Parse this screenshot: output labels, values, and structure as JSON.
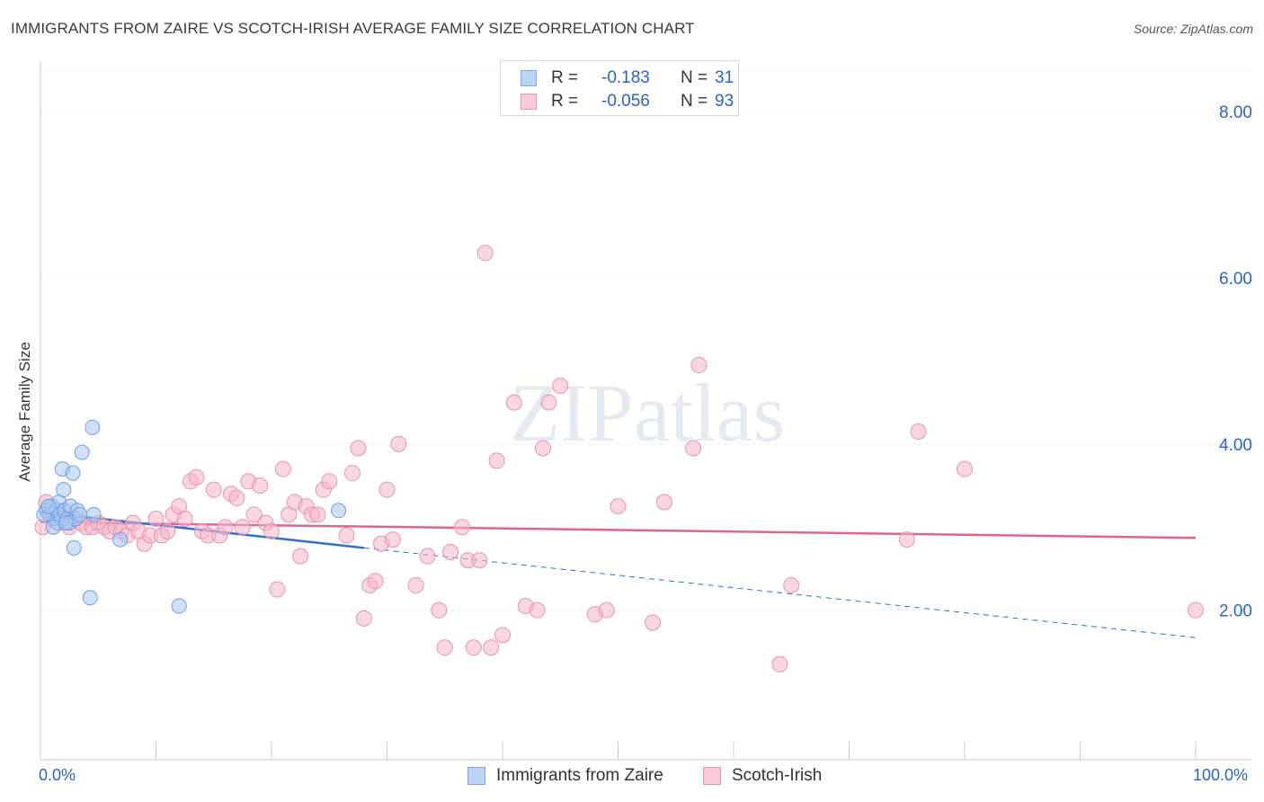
{
  "title": "IMMIGRANTS FROM ZAIRE VS SCOTCH-IRISH AVERAGE FAMILY SIZE CORRELATION CHART",
  "source": "Source: ZipAtlas.com",
  "watermark": "ZIPatlas",
  "colors": {
    "blue": "#2e6fd1",
    "blue_fill": "#a9c6f0",
    "pink": "#e0648f",
    "pink_fill": "#f4b6cb",
    "tick_text": "#2a63c4",
    "grid": "#e6e6e6"
  },
  "legend": {
    "rows": [
      {
        "r_label": "R =",
        "r_value": "-0.183",
        "n_label": "N =",
        "n_value": "31"
      },
      {
        "r_label": "R =",
        "r_value": "-0.056",
        "n_label": "N = ",
        "n_value": "93"
      }
    ]
  },
  "bottom_legend": {
    "series1": "Immigrants from Zaire",
    "series2": "Scotch-Irish"
  },
  "chart_data": {
    "type": "scatter",
    "xlabel": "",
    "ylabel": "Average Family Size",
    "xlim": [
      0,
      100
    ],
    "ylim": [
      0.2,
      8.5
    ],
    "x_tick_labels": [
      "0.0%",
      "100.0%"
    ],
    "y_ticks": [
      2,
      4,
      6,
      8
    ],
    "y_tick_labels": [
      "2.00",
      "4.00",
      "6.00",
      "8.00"
    ],
    "grid": true,
    "legend_placement": "top-center",
    "series": [
      {
        "name": "Immigrants from Zaire",
        "color": "#2e6fd1",
        "points": [
          [
            0.5,
            3.2
          ],
          [
            0.8,
            3.15
          ],
          [
            1.0,
            3.25
          ],
          [
            1.2,
            3.1
          ],
          [
            1.4,
            3.2
          ],
          [
            1.5,
            3.05
          ],
          [
            1.6,
            3.3
          ],
          [
            1.7,
            3.15
          ],
          [
            1.8,
            3.1
          ],
          [
            1.9,
            3.7
          ],
          [
            2.0,
            3.45
          ],
          [
            2.1,
            3.2
          ],
          [
            2.3,
            3.1
          ],
          [
            2.5,
            3.05
          ],
          [
            2.6,
            3.25
          ],
          [
            2.8,
            3.65
          ],
          [
            2.9,
            2.75
          ],
          [
            3.0,
            3.1
          ],
          [
            3.2,
            3.2
          ],
          [
            3.4,
            3.15
          ],
          [
            3.6,
            3.9
          ],
          [
            4.5,
            4.2
          ],
          [
            4.3,
            2.15
          ],
          [
            4.6,
            3.15
          ],
          [
            6.9,
            2.85
          ],
          [
            12.0,
            2.05
          ],
          [
            25.8,
            3.2
          ],
          [
            0.3,
            3.15
          ],
          [
            1.1,
            3.0
          ],
          [
            2.2,
            3.05
          ],
          [
            0.7,
            3.25
          ]
        ],
        "trend": {
          "x": [
            0,
            28
          ],
          "y": [
            3.18,
            2.75
          ]
        },
        "trend_extension": {
          "x": [
            28,
            100
          ],
          "y": [
            2.75,
            1.67
          ]
        }
      },
      {
        "name": "Scotch-Irish",
        "color": "#e0648f",
        "points": [
          [
            0.5,
            3.3
          ],
          [
            1.0,
            3.1
          ],
          [
            1.5,
            3.05
          ],
          [
            2.0,
            3.2
          ],
          [
            2.5,
            3.0
          ],
          [
            3.0,
            3.1
          ],
          [
            3.5,
            3.05
          ],
          [
            4.0,
            3.0
          ],
          [
            4.5,
            3.0
          ],
          [
            5.0,
            3.05
          ],
          [
            5.5,
            3.0
          ],
          [
            6.0,
            2.95
          ],
          [
            6.5,
            3.0
          ],
          [
            7.0,
            2.95
          ],
          [
            7.5,
            2.9
          ],
          [
            8.0,
            3.05
          ],
          [
            8.5,
            2.95
          ],
          [
            9.0,
            2.8
          ],
          [
            9.5,
            2.9
          ],
          [
            10.0,
            3.1
          ],
          [
            10.5,
            2.9
          ],
          [
            11.0,
            2.95
          ],
          [
            11.5,
            3.15
          ],
          [
            12.0,
            3.25
          ],
          [
            12.5,
            3.1
          ],
          [
            13.0,
            3.55
          ],
          [
            13.5,
            3.6
          ],
          [
            14.0,
            2.95
          ],
          [
            14.5,
            2.9
          ],
          [
            15.0,
            3.45
          ],
          [
            15.5,
            2.9
          ],
          [
            16.0,
            3.0
          ],
          [
            16.5,
            3.4
          ],
          [
            17.0,
            3.35
          ],
          [
            17.5,
            3.0
          ],
          [
            18.0,
            3.55
          ],
          [
            18.5,
            3.15
          ],
          [
            19.0,
            3.5
          ],
          [
            19.5,
            3.05
          ],
          [
            20.0,
            2.95
          ],
          [
            20.5,
            2.25
          ],
          [
            21.0,
            3.7
          ],
          [
            21.5,
            3.15
          ],
          [
            22.0,
            3.3
          ],
          [
            22.5,
            2.65
          ],
          [
            23.0,
            3.25
          ],
          [
            23.5,
            3.15
          ],
          [
            24.0,
            3.15
          ],
          [
            24.5,
            3.45
          ],
          [
            25.0,
            3.55
          ],
          [
            26.5,
            2.9
          ],
          [
            27.0,
            3.65
          ],
          [
            27.5,
            3.95
          ],
          [
            28.0,
            1.9
          ],
          [
            28.5,
            2.3
          ],
          [
            29.0,
            2.35
          ],
          [
            29.5,
            2.8
          ],
          [
            30.0,
            3.45
          ],
          [
            30.5,
            2.85
          ],
          [
            31.0,
            4.0
          ],
          [
            32.5,
            2.3
          ],
          [
            33.5,
            2.65
          ],
          [
            34.5,
            2.0
          ],
          [
            35.0,
            1.55
          ],
          [
            35.5,
            2.7
          ],
          [
            36.5,
            3.0
          ],
          [
            37.0,
            2.6
          ],
          [
            37.5,
            1.55
          ],
          [
            38.0,
            2.6
          ],
          [
            38.5,
            6.3
          ],
          [
            39.0,
            1.55
          ],
          [
            39.5,
            3.8
          ],
          [
            40.0,
            1.7
          ],
          [
            41.0,
            4.5
          ],
          [
            42.0,
            2.05
          ],
          [
            43.0,
            2.0
          ],
          [
            43.5,
            3.95
          ],
          [
            44.0,
            4.5
          ],
          [
            45.0,
            4.7
          ],
          [
            48.0,
            1.95
          ],
          [
            49.0,
            2.0
          ],
          [
            50.0,
            3.25
          ],
          [
            53.0,
            1.85
          ],
          [
            54.0,
            3.3
          ],
          [
            56.5,
            3.95
          ],
          [
            57.0,
            4.95
          ],
          [
            64.0,
            1.35
          ],
          [
            65.0,
            2.3
          ],
          [
            75.0,
            2.85
          ],
          [
            76.0,
            4.15
          ],
          [
            80.0,
            3.7
          ],
          [
            100.0,
            2.0
          ],
          [
            0.2,
            3.0
          ]
        ],
        "trend": {
          "x": [
            0,
            100
          ],
          "y": [
            3.06,
            2.87
          ]
        }
      }
    ]
  }
}
